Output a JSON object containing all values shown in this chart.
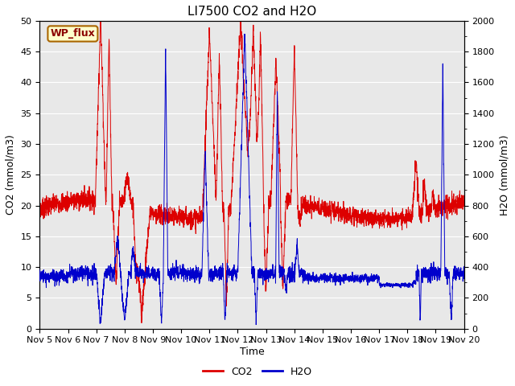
{
  "title": "LI7500 CO2 and H2O",
  "xlabel": "Time",
  "ylabel_left": "CO2 (mmol/m3)",
  "ylabel_right": "H2O (mmol/m3)",
  "ylim_left": [
    0,
    50
  ],
  "ylim_right": [
    0,
    2000
  ],
  "yticks_left": [
    0,
    5,
    10,
    15,
    20,
    25,
    30,
    35,
    40,
    45,
    50
  ],
  "yticks_right": [
    0,
    200,
    400,
    600,
    800,
    1000,
    1200,
    1400,
    1600,
    1800,
    2000
  ],
  "xtick_labels": [
    "Nov 5",
    "Nov 6",
    "Nov 7",
    "Nov 8",
    "Nov 9",
    "Nov 10",
    "Nov 11",
    "Nov 12",
    "Nov 13",
    "Nov 14",
    "Nov 15",
    "Nov 16",
    "Nov 17",
    "Nov 18",
    "Nov 19",
    "Nov 20"
  ],
  "watermark_text": "WP_flux",
  "watermark_bg": "#ffffcc",
  "watermark_border": "#aa6600",
  "watermark_text_color": "#8b0000",
  "co2_color": "#dd0000",
  "h2o_color": "#0000cc",
  "background_color": "#e8e8e8",
  "grid_color": "#ffffff",
  "title_fontsize": 11,
  "axis_label_fontsize": 9,
  "tick_fontsize": 8,
  "legend_fontsize": 9,
  "linewidth": 0.7
}
